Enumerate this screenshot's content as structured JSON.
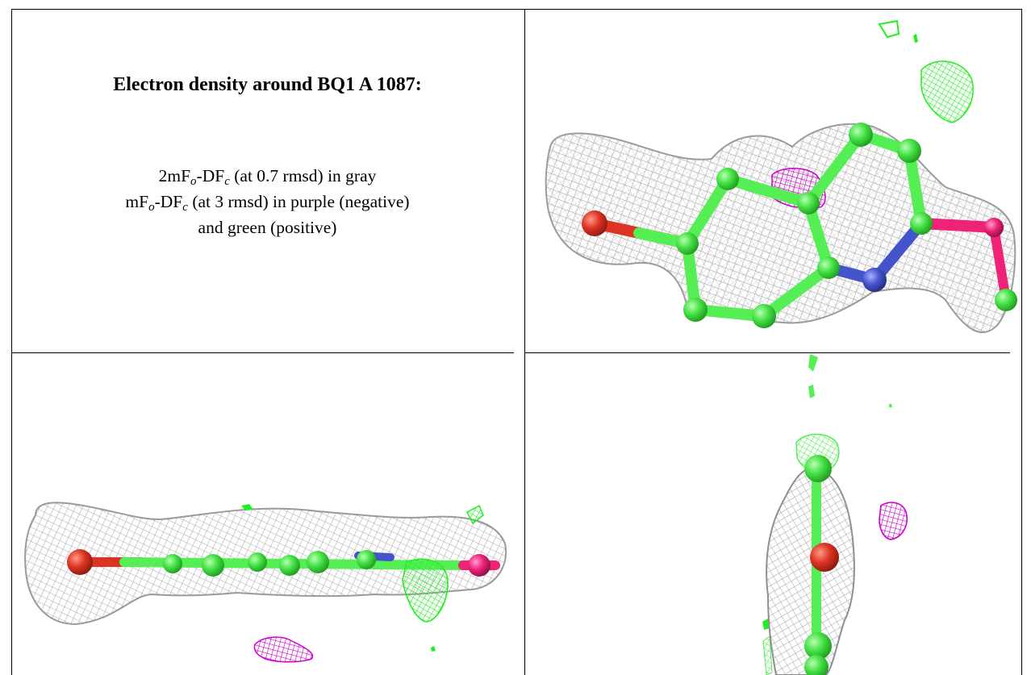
{
  "heading": "Electron density around BQ1 A 1087:",
  "legend": {
    "line1": {
      "a": "2mF",
      "sub1": "o",
      "b": "-DF",
      "sub2": "c",
      "c": " (at 0.7 rmsd) in gray"
    },
    "line2": {
      "a": "mF",
      "sub1": "o",
      "b": "-DF",
      "sub2": "c",
      "c": " (at 3 rmsd) in purple (negative)"
    },
    "line3": "and green (positive)"
  },
  "colors": {
    "mesh_gray": "#a9a9a9",
    "density_positive": "#22ee22",
    "density_negative": "#cc00cc",
    "carbon": "#55ee55",
    "oxygen": "#dd3322",
    "nitrogen": "#4455cc",
    "sulfur": "#ee2277"
  },
  "views": [
    "top view",
    "side view",
    "end view"
  ]
}
